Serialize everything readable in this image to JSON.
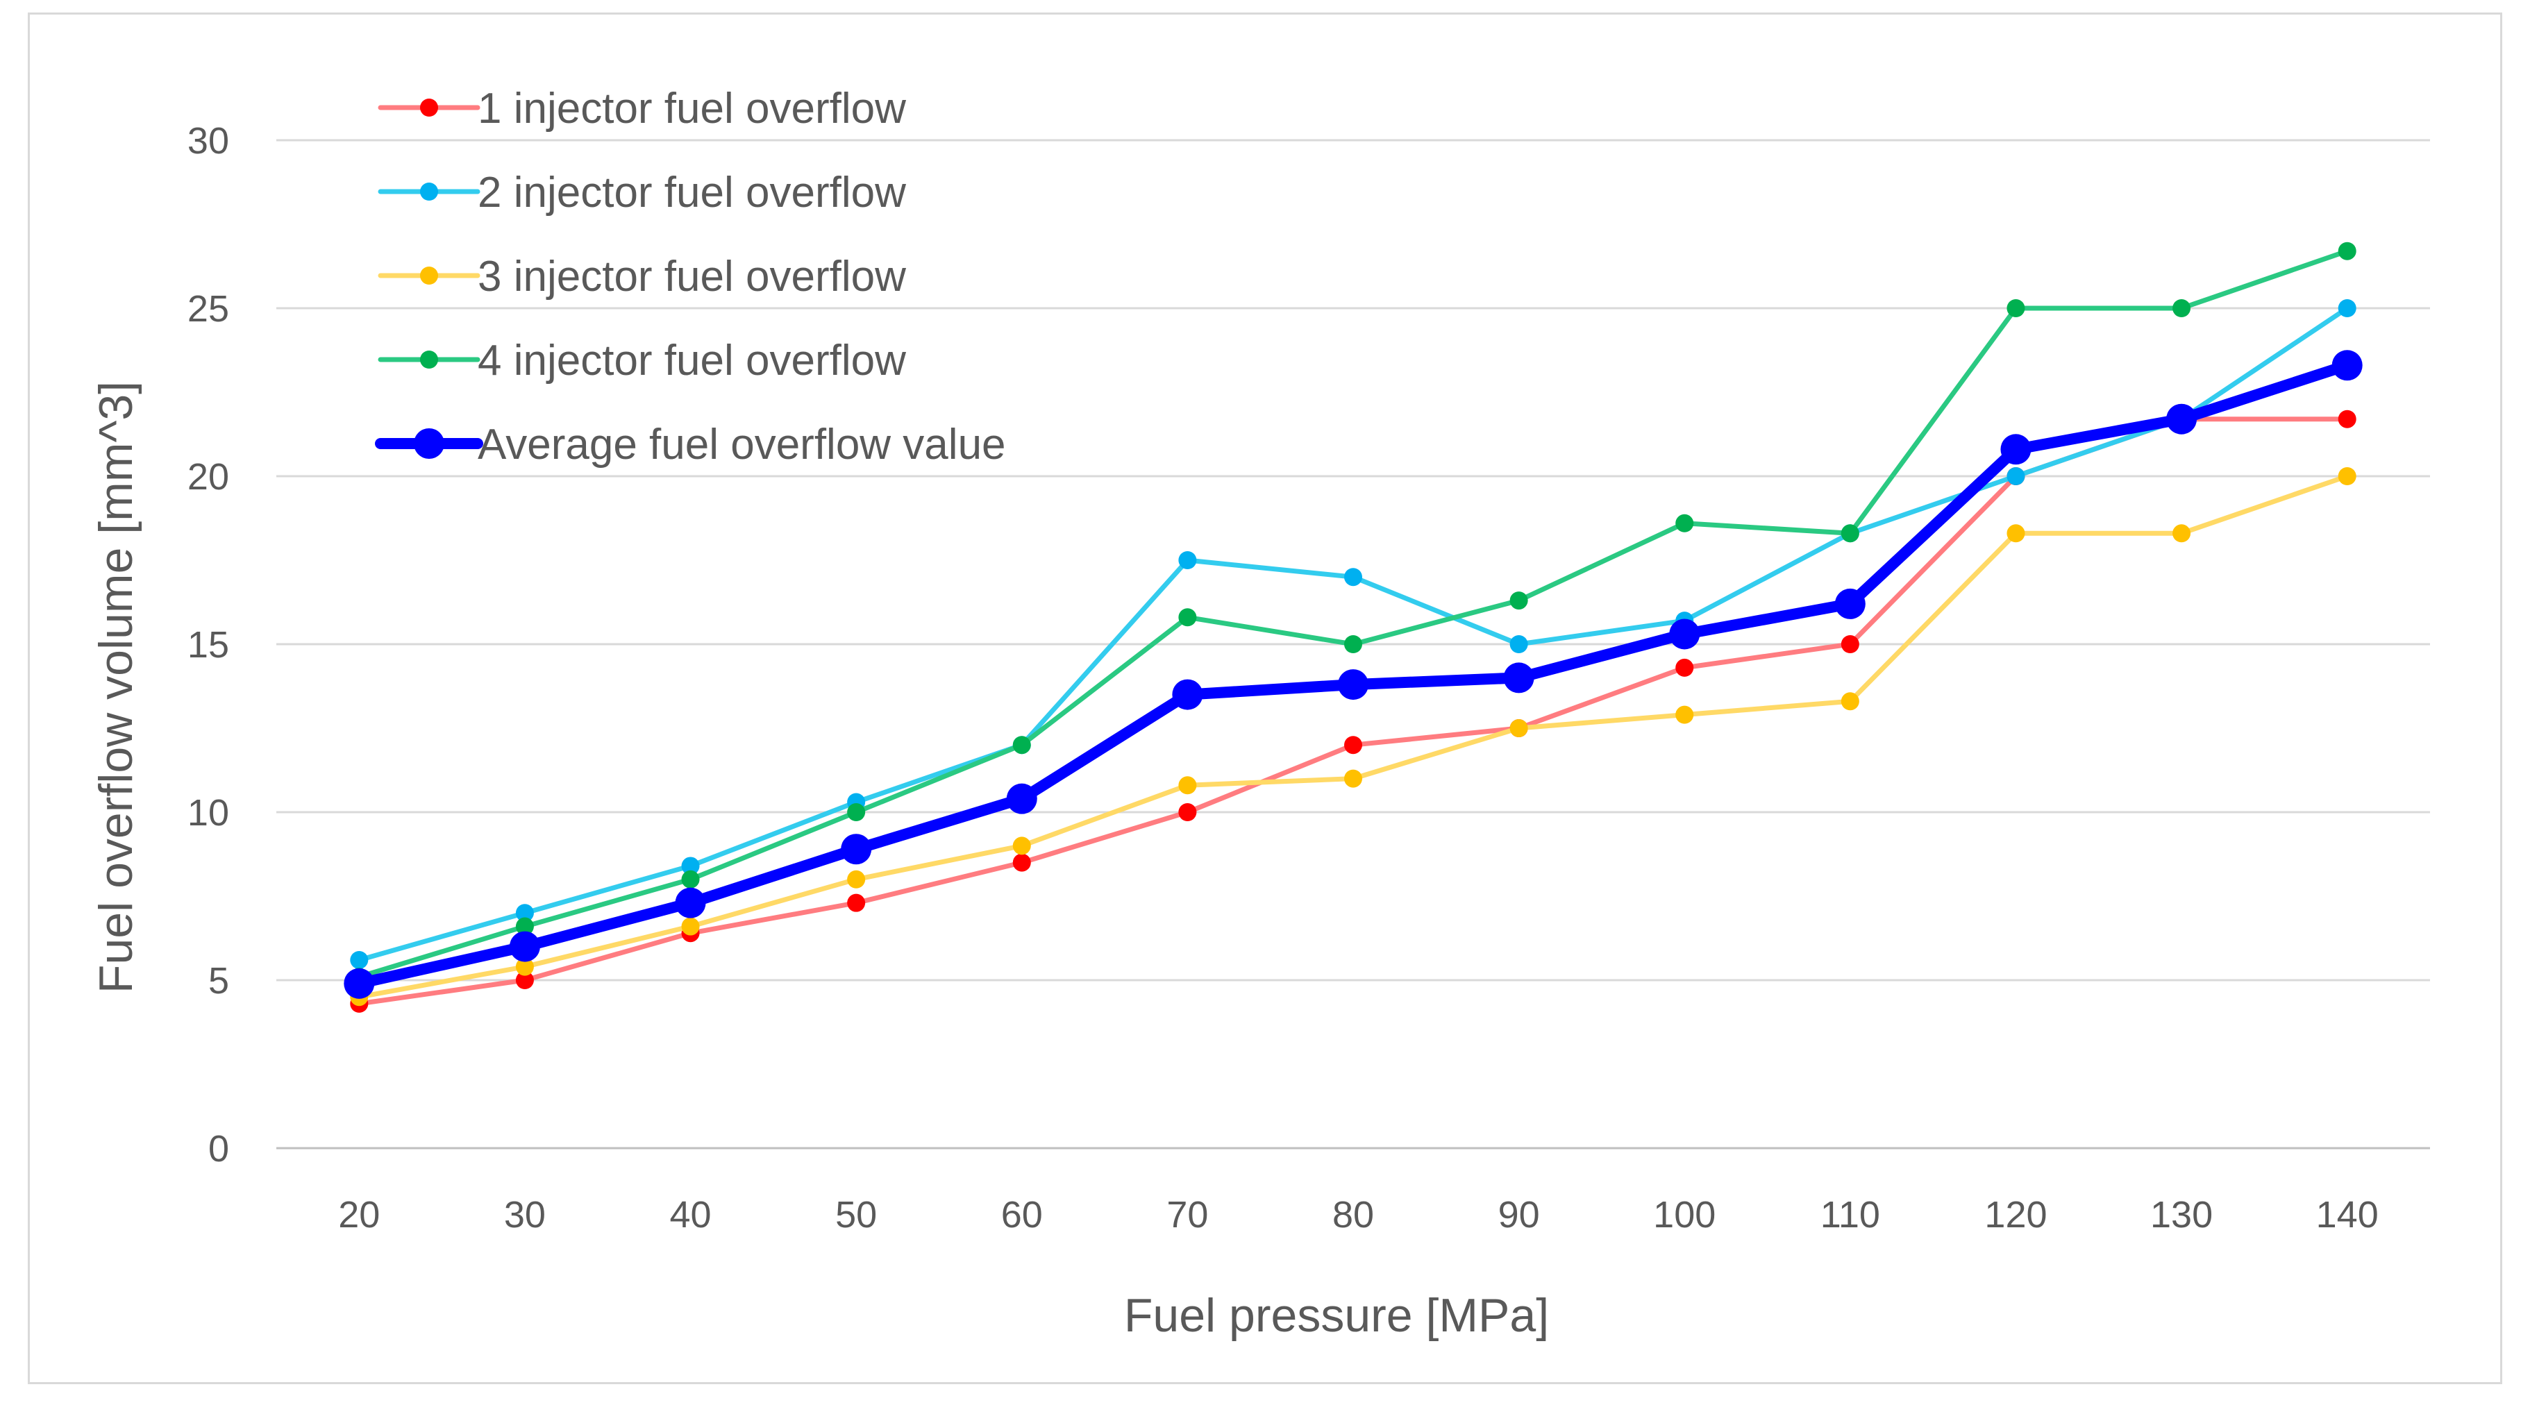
{
  "chart_data": {
    "type": "line",
    "xlabel": "Fuel pressure [MPa]",
    "ylabel": "Fuel overflow volume [mm^3]",
    "ylim": [
      0,
      30
    ],
    "yticks": [
      0,
      5,
      10,
      15,
      20,
      25,
      30
    ],
    "categories": [
      "20",
      "30",
      "40",
      "50",
      "60",
      "70",
      "80",
      "90",
      "100",
      "110",
      "120",
      "130",
      "140"
    ],
    "grid": true,
    "legend_position": "top-left",
    "series": [
      {
        "name": "1 injector fuel overflow",
        "color": "#ff7c80",
        "marker_color": "#ff0000",
        "values": [
          4.3,
          5.0,
          6.4,
          7.3,
          8.5,
          10.0,
          12.0,
          12.5,
          14.3,
          15.0,
          20.0,
          21.7,
          21.7
        ]
      },
      {
        "name": "2 injector fuel overflow",
        "color": "#33ccee",
        "marker_color": "#00b0f0",
        "values": [
          5.6,
          7.0,
          8.4,
          10.3,
          12.0,
          17.5,
          17.0,
          15.0,
          15.7,
          18.3,
          20.0,
          21.7,
          25.0
        ]
      },
      {
        "name": "3 injector fuel overflow",
        "color": "#ffd966",
        "marker_color": "#ffc000",
        "values": [
          4.5,
          5.4,
          6.6,
          8.0,
          9.0,
          10.8,
          11.0,
          12.5,
          12.9,
          13.3,
          18.3,
          18.3,
          20.0
        ]
      },
      {
        "name": "4 injector fuel overflow",
        "color": "#2ac982",
        "marker_color": "#00b050",
        "values": [
          5.1,
          6.6,
          8.0,
          10.0,
          12.0,
          15.8,
          15.0,
          16.3,
          18.6,
          18.3,
          25.0,
          25.0,
          26.7
        ]
      },
      {
        "name": "Average fuel overflow value",
        "color": "#0000ff",
        "marker_color": "#0000ff",
        "values": [
          4.9,
          6.0,
          7.3,
          8.9,
          10.4,
          13.5,
          13.8,
          14.0,
          15.3,
          16.2,
          20.8,
          21.7,
          23.3
        ]
      }
    ]
  }
}
